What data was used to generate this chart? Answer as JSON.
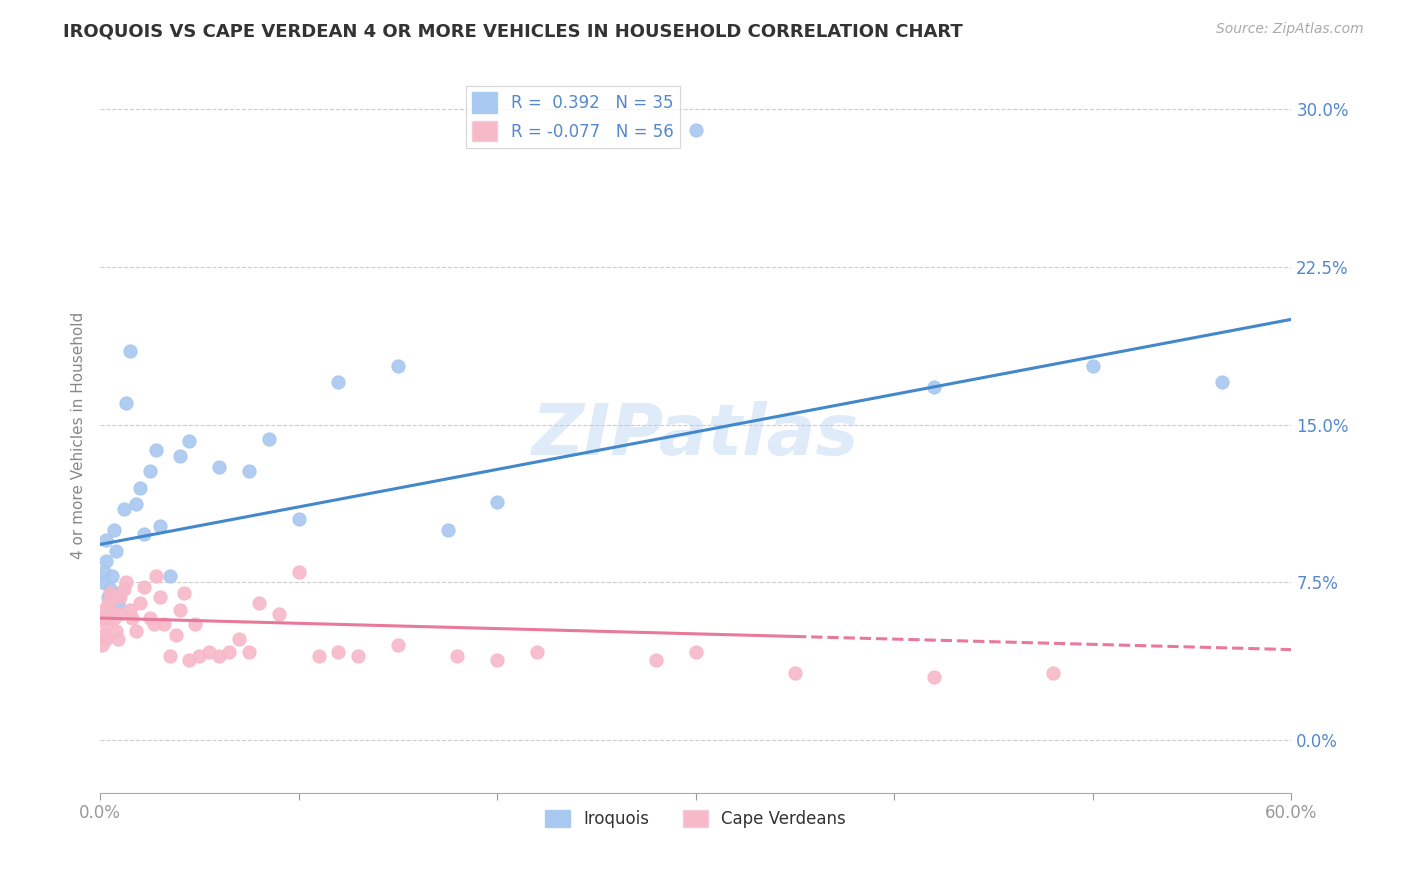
{
  "title": "IROQUOIS VS CAPE VERDEAN 4 OR MORE VEHICLES IN HOUSEHOLD CORRELATION CHART",
  "source": "Source: ZipAtlas.com",
  "ylabel": "4 or more Vehicles in Household",
  "x_min": 0.0,
  "x_max": 0.6,
  "y_min": -0.025,
  "y_max": 0.315,
  "x_ticks": [
    0.0,
    0.1,
    0.2,
    0.3,
    0.4,
    0.5,
    0.6
  ],
  "x_tick_labels_show": [
    "0.0%",
    "",
    "",
    "",
    "",
    "",
    "60.0%"
  ],
  "y_ticks_right": [
    0.0,
    0.075,
    0.15,
    0.225,
    0.3
  ],
  "y_tick_labels_right": [
    "0.0%",
    "7.5%",
    "15.0%",
    "22.5%",
    "30.0%"
  ],
  "iroquois_color": "#a8c8f0",
  "cape_verdean_color": "#f7b8c8",
  "iroquois_line_color": "#4488cc",
  "cape_verdean_line_color": "#e8799a",
  "iroquois_R": 0.392,
  "iroquois_N": 35,
  "cape_verdean_R": -0.077,
  "cape_verdean_N": 56,
  "watermark": "ZIPatlas",
  "background_color": "#ffffff",
  "iroquois_x": [
    0.001,
    0.002,
    0.003,
    0.003,
    0.004,
    0.005,
    0.006,
    0.007,
    0.008,
    0.009,
    0.01,
    0.012,
    0.013,
    0.015,
    0.018,
    0.02,
    0.022,
    0.025,
    0.028,
    0.03,
    0.035,
    0.04,
    0.045,
    0.06,
    0.075,
    0.085,
    0.1,
    0.12,
    0.15,
    0.175,
    0.2,
    0.3,
    0.42,
    0.5,
    0.565
  ],
  "iroquois_y": [
    0.075,
    0.08,
    0.085,
    0.095,
    0.068,
    0.072,
    0.078,
    0.1,
    0.09,
    0.065,
    0.07,
    0.11,
    0.16,
    0.185,
    0.112,
    0.12,
    0.098,
    0.128,
    0.138,
    0.102,
    0.078,
    0.135,
    0.142,
    0.13,
    0.128,
    0.143,
    0.105,
    0.17,
    0.178,
    0.1,
    0.113,
    0.29,
    0.168,
    0.178,
    0.17
  ],
  "cape_verdean_x": [
    0.001,
    0.001,
    0.002,
    0.002,
    0.003,
    0.003,
    0.004,
    0.004,
    0.005,
    0.005,
    0.006,
    0.006,
    0.007,
    0.008,
    0.009,
    0.01,
    0.01,
    0.012,
    0.013,
    0.015,
    0.016,
    0.018,
    0.02,
    0.022,
    0.025,
    0.027,
    0.028,
    0.03,
    0.032,
    0.035,
    0.038,
    0.04,
    0.042,
    0.045,
    0.048,
    0.05,
    0.055,
    0.06,
    0.065,
    0.07,
    0.075,
    0.08,
    0.09,
    0.1,
    0.11,
    0.12,
    0.13,
    0.15,
    0.18,
    0.2,
    0.22,
    0.28,
    0.3,
    0.35,
    0.42,
    0.48
  ],
  "cape_verdean_y": [
    0.058,
    0.045,
    0.062,
    0.05,
    0.048,
    0.055,
    0.058,
    0.065,
    0.062,
    0.07,
    0.068,
    0.06,
    0.058,
    0.052,
    0.048,
    0.06,
    0.068,
    0.072,
    0.075,
    0.062,
    0.058,
    0.052,
    0.065,
    0.073,
    0.058,
    0.055,
    0.078,
    0.068,
    0.055,
    0.04,
    0.05,
    0.062,
    0.07,
    0.038,
    0.055,
    0.04,
    0.042,
    0.04,
    0.042,
    0.048,
    0.042,
    0.065,
    0.06,
    0.08,
    0.04,
    0.042,
    0.04,
    0.045,
    0.04,
    0.038,
    0.042,
    0.038,
    0.042,
    0.032,
    0.03,
    0.032
  ],
  "irq_line_x0": 0.0,
  "irq_line_y0": 0.093,
  "irq_line_x1": 0.6,
  "irq_line_y1": 0.2,
  "cv_line_x0": 0.0,
  "cv_line_y0": 0.058,
  "cv_line_x1": 0.6,
  "cv_line_y1": 0.043
}
